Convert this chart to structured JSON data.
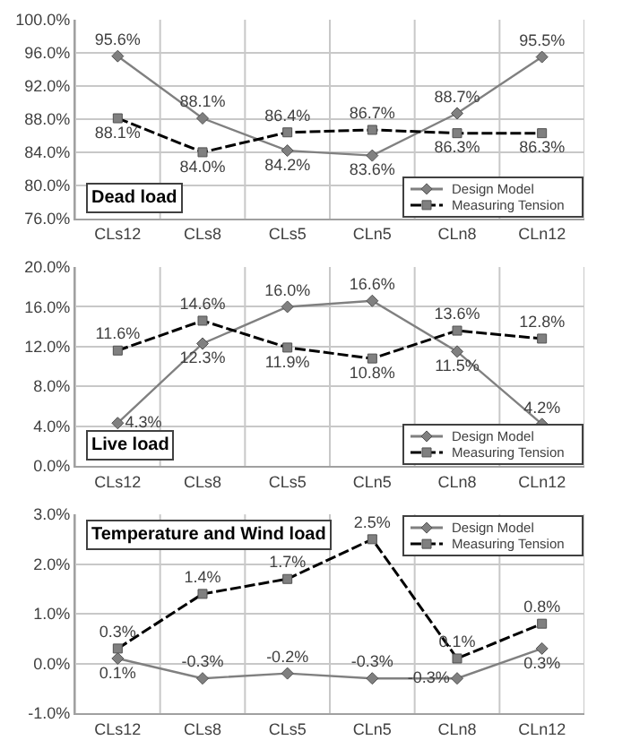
{
  "chart_data": [
    {
      "type": "line",
      "title": "Dead load",
      "categories": [
        "CLs12",
        "CLs8",
        "CLs5",
        "CLn5",
        "CLn8",
        "CLn12"
      ],
      "ylim": [
        76,
        100
      ],
      "yticks": [
        {
          "value": 76,
          "label": "76.0%"
        },
        {
          "value": 80,
          "label": "80.0%"
        },
        {
          "value": 84,
          "label": "84.0%"
        },
        {
          "value": 88,
          "label": "88.0%"
        },
        {
          "value": 92,
          "label": "92.0%"
        },
        {
          "value": 96,
          "label": "96.0%"
        },
        {
          "value": 100,
          "label": "100.0%"
        }
      ],
      "grid": true,
      "legend": "bottom right",
      "series": [
        {
          "name": "Design Model",
          "color": "#808080",
          "marker": "diamond",
          "line_style": "solid",
          "values": [
            95.6,
            88.1,
            84.2,
            83.6,
            88.7,
            95.5
          ],
          "value_labels": [
            "95.6%",
            "88.1%",
            "84.2%",
            "83.6%",
            "88.7%",
            "95.5%"
          ]
        },
        {
          "name": "Measuring Tension",
          "color": "#000000",
          "marker": "square",
          "line_style": "dashed",
          "values": [
            88.1,
            84.0,
            86.4,
            86.7,
            86.3,
            86.3
          ],
          "value_labels": [
            "88.1%",
            "84.0%",
            "86.4%",
            "86.7%",
            "86.3%",
            "86.3%"
          ]
        }
      ]
    },
    {
      "type": "line",
      "title": "Live load",
      "categories": [
        "CLs12",
        "CLs8",
        "CLs5",
        "CLn5",
        "CLn8",
        "CLn12"
      ],
      "ylim": [
        0,
        20
      ],
      "yticks": [
        {
          "value": 0,
          "label": "0.0%"
        },
        {
          "value": 4,
          "label": "4.0%"
        },
        {
          "value": 8,
          "label": "8.0%"
        },
        {
          "value": 12,
          "label": "12.0%"
        },
        {
          "value": 16,
          "label": "16.0%"
        },
        {
          "value": 20,
          "label": "20.0%"
        }
      ],
      "grid": true,
      "legend": "bottom right",
      "series": [
        {
          "name": "Design Model",
          "color": "#808080",
          "marker": "diamond",
          "line_style": "solid",
          "values": [
            4.3,
            12.3,
            16.0,
            16.6,
            11.5,
            4.2
          ],
          "value_labels": [
            "4.3%",
            "12.3%",
            "16.0%",
            "16.6%",
            "11.5%",
            "4.2%"
          ]
        },
        {
          "name": "Measuring Tension",
          "color": "#000000",
          "marker": "square",
          "line_style": "dashed",
          "values": [
            11.6,
            14.6,
            11.9,
            10.8,
            13.6,
            12.8
          ],
          "value_labels": [
            "11.6%",
            "14.6%",
            "11.9%",
            "10.8%",
            "13.6%",
            "12.8%"
          ]
        }
      ]
    },
    {
      "type": "line",
      "title": "Temperature and Wind load",
      "categories": [
        "CLs12",
        "CLs8",
        "CLs5",
        "CLn5",
        "CLn8",
        "CLn12"
      ],
      "ylim": [
        -1,
        3
      ],
      "yticks": [
        {
          "value": -1,
          "label": "-1.0%"
        },
        {
          "value": 0,
          "label": "0.0%"
        },
        {
          "value": 1,
          "label": "1.0%"
        },
        {
          "value": 2,
          "label": "2.0%"
        },
        {
          "value": 3,
          "label": "3.0%"
        }
      ],
      "grid": true,
      "legend": "top right",
      "series": [
        {
          "name": "Design Model",
          "color": "#808080",
          "marker": "diamond",
          "line_style": "solid",
          "values": [
            0.1,
            -0.3,
            -0.2,
            -0.3,
            -0.3,
            0.3
          ],
          "value_labels": [
            "0.1%",
            "-0.3%",
            "-0.2%",
            "-0.3%",
            "-0.3%",
            "0.3%"
          ]
        },
        {
          "name": "Measuring Tension",
          "color": "#000000",
          "marker": "square",
          "line_style": "dashed",
          "values": [
            0.3,
            1.4,
            1.7,
            2.5,
            0.1,
            0.8
          ],
          "value_labels": [
            "0.3%",
            "1.4%",
            "1.7%",
            "2.5%",
            "0.1%",
            "0.8%"
          ]
        }
      ]
    }
  ]
}
